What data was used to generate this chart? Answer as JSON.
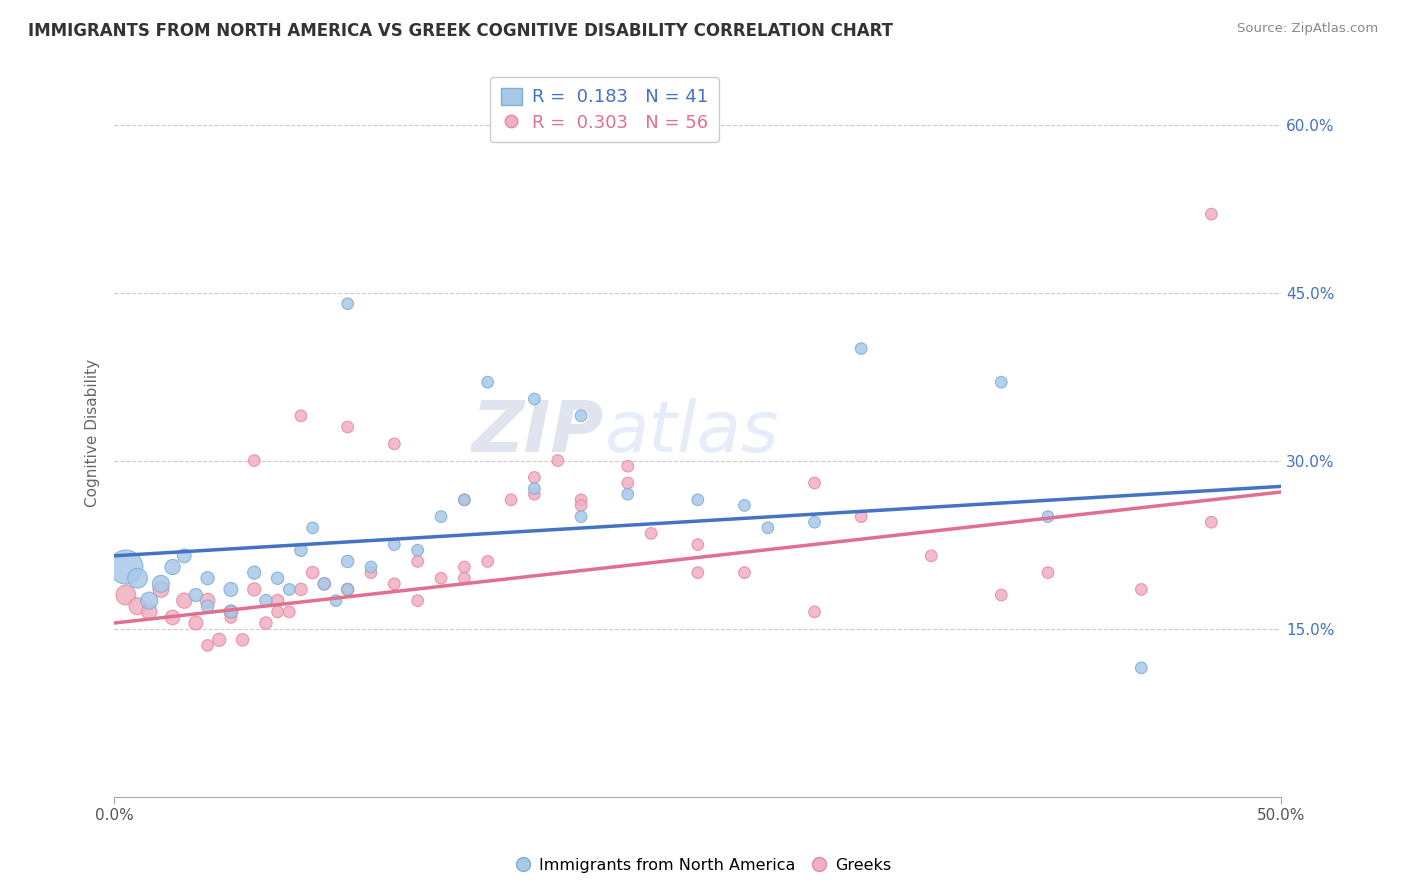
{
  "title": "IMMIGRANTS FROM NORTH AMERICA VS GREEK COGNITIVE DISABILITY CORRELATION CHART",
  "source": "Source: ZipAtlas.com",
  "ylabel": "Cognitive Disability",
  "ylabel_right_ticks": [
    "15.0%",
    "30.0%",
    "45.0%",
    "60.0%"
  ],
  "ylabel_right_vals": [
    0.15,
    0.3,
    0.45,
    0.6
  ],
  "watermark_zip": "ZIP",
  "watermark_atlas": "atlas",
  "series1_label": "Immigrants from North America",
  "series2_label": "Greeks",
  "series1_color": "#a8c8e8",
  "series2_color": "#f0b0c0",
  "series1_edge_color": "#7bafd4",
  "series2_edge_color": "#e888a0",
  "series1_line_color": "#4472c4",
  "series2_line_color": "#e07090",
  "series1_R": "0.183",
  "series1_N": "41",
  "series2_R": "0.303",
  "series2_N": "56",
  "series1_x": [
    0.005,
    0.01,
    0.015,
    0.02,
    0.025,
    0.03,
    0.035,
    0.04,
    0.04,
    0.05,
    0.05,
    0.06,
    0.065,
    0.07,
    0.075,
    0.08,
    0.085,
    0.09,
    0.095,
    0.1,
    0.1,
    0.11,
    0.12,
    0.13,
    0.14,
    0.15,
    0.18,
    0.2,
    0.22,
    0.25,
    0.27,
    0.3,
    0.32,
    0.38,
    0.4,
    0.1,
    0.16,
    0.18,
    0.2,
    0.28,
    0.44
  ],
  "series1_y": [
    0.205,
    0.195,
    0.175,
    0.19,
    0.205,
    0.215,
    0.18,
    0.195,
    0.17,
    0.185,
    0.165,
    0.2,
    0.175,
    0.195,
    0.185,
    0.22,
    0.24,
    0.19,
    0.175,
    0.21,
    0.185,
    0.205,
    0.225,
    0.22,
    0.25,
    0.265,
    0.275,
    0.25,
    0.27,
    0.265,
    0.26,
    0.245,
    0.4,
    0.37,
    0.25,
    0.44,
    0.37,
    0.355,
    0.34,
    0.24,
    0.115
  ],
  "series1_sizes": [
    600,
    200,
    150,
    150,
    120,
    100,
    90,
    90,
    80,
    100,
    80,
    90,
    80,
    80,
    70,
    80,
    70,
    80,
    70,
    80,
    70,
    70,
    70,
    70,
    70,
    70,
    70,
    70,
    70,
    70,
    70,
    70,
    70,
    70,
    70,
    70,
    70,
    70,
    70,
    70,
    70
  ],
  "series2_x": [
    0.005,
    0.01,
    0.015,
    0.02,
    0.025,
    0.03,
    0.035,
    0.04,
    0.045,
    0.05,
    0.055,
    0.06,
    0.065,
    0.07,
    0.075,
    0.08,
    0.085,
    0.09,
    0.1,
    0.11,
    0.12,
    0.13,
    0.14,
    0.15,
    0.15,
    0.16,
    0.17,
    0.18,
    0.19,
    0.2,
    0.22,
    0.23,
    0.25,
    0.27,
    0.3,
    0.32,
    0.35,
    0.38,
    0.4,
    0.44,
    0.47,
    0.06,
    0.08,
    0.1,
    0.12,
    0.22,
    0.3,
    0.18,
    0.2,
    0.15,
    0.25,
    0.13,
    0.05,
    0.04,
    0.07,
    0.47
  ],
  "series2_y": [
    0.18,
    0.17,
    0.165,
    0.185,
    0.16,
    0.175,
    0.155,
    0.175,
    0.14,
    0.165,
    0.14,
    0.185,
    0.155,
    0.175,
    0.165,
    0.185,
    0.2,
    0.19,
    0.185,
    0.2,
    0.19,
    0.21,
    0.195,
    0.205,
    0.195,
    0.21,
    0.265,
    0.27,
    0.3,
    0.265,
    0.28,
    0.235,
    0.225,
    0.2,
    0.165,
    0.25,
    0.215,
    0.18,
    0.2,
    0.185,
    0.245,
    0.3,
    0.34,
    0.33,
    0.315,
    0.295,
    0.28,
    0.285,
    0.26,
    0.265,
    0.2,
    0.175,
    0.16,
    0.135,
    0.165,
    0.52
  ],
  "series2_sizes": [
    200,
    150,
    120,
    130,
    110,
    120,
    100,
    110,
    90,
    100,
    80,
    90,
    80,
    80,
    70,
    80,
    80,
    80,
    80,
    70,
    70,
    70,
    70,
    70,
    70,
    70,
    70,
    70,
    70,
    70,
    70,
    70,
    70,
    70,
    70,
    70,
    70,
    70,
    70,
    70,
    70,
    70,
    70,
    70,
    70,
    70,
    70,
    70,
    70,
    70,
    70,
    70,
    70,
    70,
    70,
    70
  ],
  "xlim": [
    0.0,
    0.5
  ],
  "ylim": [
    0.0,
    0.65
  ],
  "background_color": "#ffffff",
  "grid_color": "#cccccc",
  "trend1_x0": 0.0,
  "trend1_y0": 0.215,
  "trend1_x1": 0.5,
  "trend1_y1": 0.277,
  "trend2_x0": 0.0,
  "trend2_y0": 0.155,
  "trend2_x1": 0.5,
  "trend2_y1": 0.272
}
